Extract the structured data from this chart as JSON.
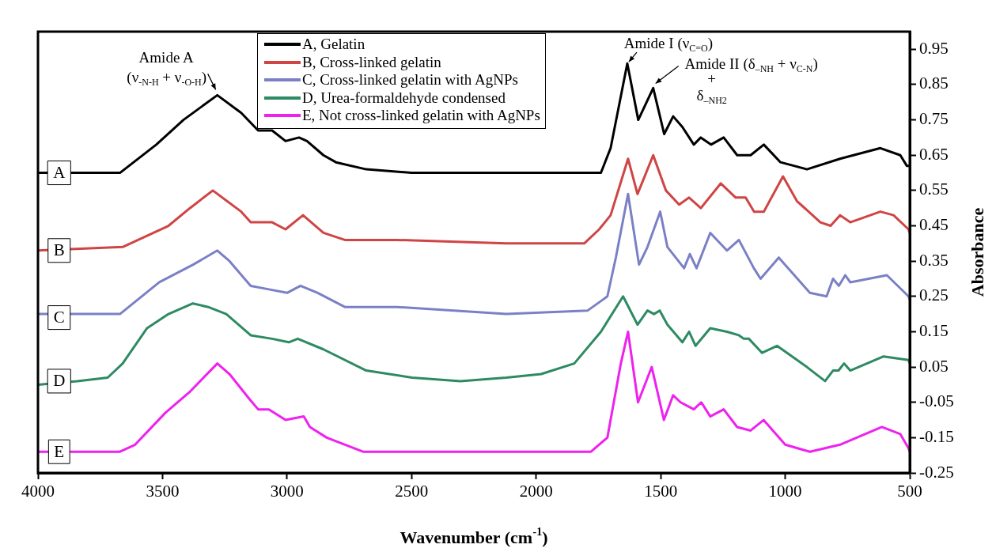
{
  "chart_data": {
    "type": "line",
    "xlabel": "Wavenumber (cm$^{-1}$)",
    "ylabel": "Absorbance",
    "xlim": [
      4000,
      500
    ],
    "xticks": [
      4000,
      3500,
      3000,
      2500,
      2000,
      1500,
      1000,
      500
    ],
    "ylim": [
      -0.25,
      1.0
    ],
    "yticks": [
      -0.25,
      -0.15,
      -0.05,
      0.05,
      0.15,
      0.25,
      0.35,
      0.45,
      0.55,
      0.65,
      0.75,
      0.85,
      0.95
    ],
    "grid": false,
    "legend": "top",
    "series": [
      {
        "name": "A, Gelatin",
        "color": "#000000",
        "x": [
          4000,
          3671,
          3525,
          3416,
          3280,
          3184,
          3116,
          3060,
          3006,
          2952,
          2920,
          2854,
          2804,
          2682,
          2500,
          2000,
          1740,
          1701,
          1634,
          1590,
          1530,
          1486,
          1450,
          1413,
          1367,
          1339,
          1298,
          1247,
          1193,
          1139,
          1086,
          1019,
          913,
          780,
          618,
          538,
          512,
          500
        ],
        "values": [
          0.6,
          0.6,
          0.68,
          0.75,
          0.82,
          0.77,
          0.72,
          0.72,
          0.69,
          0.7,
          0.69,
          0.65,
          0.63,
          0.61,
          0.6,
          0.6,
          0.6,
          0.67,
          0.91,
          0.75,
          0.84,
          0.71,
          0.76,
          0.73,
          0.68,
          0.7,
          0.68,
          0.7,
          0.65,
          0.65,
          0.68,
          0.63,
          0.61,
          0.64,
          0.67,
          0.65,
          0.62,
          0.62
        ]
      },
      {
        "name": "B, Cross-linked gelatin",
        "color": "#d04444",
        "x": [
          4000,
          3660,
          3476,
          3390,
          3298,
          3184,
          3146,
          3060,
          3006,
          2936,
          2854,
          2768,
          2560,
          2120,
          1807,
          1747,
          1701,
          1631,
          1593,
          1530,
          1479,
          1426,
          1386,
          1339,
          1259,
          1199,
          1159,
          1125,
          1086,
          1009,
          953,
          859,
          818,
          780,
          739,
          618,
          565,
          505,
          500
        ],
        "values": [
          0.38,
          0.39,
          0.45,
          0.5,
          0.55,
          0.49,
          0.46,
          0.46,
          0.44,
          0.48,
          0.43,
          0.41,
          0.41,
          0.4,
          0.4,
          0.44,
          0.48,
          0.64,
          0.54,
          0.65,
          0.55,
          0.51,
          0.53,
          0.5,
          0.57,
          0.53,
          0.53,
          0.49,
          0.49,
          0.59,
          0.52,
          0.46,
          0.45,
          0.48,
          0.46,
          0.49,
          0.48,
          0.44,
          0.43
        ]
      },
      {
        "name": "C, Cross-linked gelatin with AgNPs",
        "color": "#7b80c6",
        "x": [
          4000,
          3671,
          3513,
          3377,
          3280,
          3231,
          3146,
          3073,
          3000,
          2946,
          2877,
          2768,
          2560,
          2120,
          1793,
          1714,
          1680,
          1631,
          1587,
          1553,
          1502,
          1473,
          1406,
          1383,
          1356,
          1301,
          1234,
          1186,
          1126,
          1099,
          1026,
          901,
          834,
          808,
          785,
          759,
          739,
          592,
          505,
          500
        ],
        "values": [
          0.2,
          0.2,
          0.29,
          0.34,
          0.38,
          0.35,
          0.28,
          0.27,
          0.26,
          0.28,
          0.26,
          0.22,
          0.22,
          0.2,
          0.21,
          0.25,
          0.36,
          0.54,
          0.34,
          0.39,
          0.49,
          0.39,
          0.33,
          0.37,
          0.33,
          0.43,
          0.38,
          0.41,
          0.33,
          0.3,
          0.36,
          0.26,
          0.25,
          0.3,
          0.28,
          0.31,
          0.29,
          0.31,
          0.25,
          0.24
        ]
      },
      {
        "name": "D, Urea-formaldehyde condensed",
        "color": "#2e8a62",
        "x": [
          4000,
          3842,
          3720,
          3660,
          3562,
          3476,
          3378,
          3317,
          3244,
          3146,
          3060,
          2993,
          2957,
          2854,
          2682,
          2498,
          2304,
          2120,
          1980,
          1847,
          1740,
          1651,
          1593,
          1553,
          1527,
          1504,
          1473,
          1413,
          1386,
          1360,
          1301,
          1234,
          1186,
          1166,
          1146,
          1093,
          1033,
          913,
          840,
          808,
          786,
          764,
          739,
          605,
          505,
          500
        ],
        "values": [
          0.0,
          0.01,
          0.02,
          0.06,
          0.16,
          0.2,
          0.23,
          0.22,
          0.2,
          0.14,
          0.13,
          0.12,
          0.13,
          0.1,
          0.04,
          0.02,
          0.01,
          0.02,
          0.03,
          0.06,
          0.15,
          0.25,
          0.17,
          0.21,
          0.2,
          0.21,
          0.17,
          0.12,
          0.15,
          0.11,
          0.16,
          0.15,
          0.14,
          0.13,
          0.13,
          0.09,
          0.11,
          0.05,
          0.01,
          0.04,
          0.04,
          0.06,
          0.04,
          0.08,
          0.07,
          0.06
        ]
      },
      {
        "name": "E, Not cross-linked gelatin with AgNPs",
        "color": "#ee22ee",
        "x": [
          4000,
          3671,
          3610,
          3489,
          3390,
          3280,
          3231,
          3152,
          3116,
          3073,
          3006,
          2933,
          2908,
          2841,
          2695,
          2120,
          1780,
          1714,
          1660,
          1631,
          1591,
          1536,
          1487,
          1450,
          1420,
          1367,
          1337,
          1301,
          1247,
          1193,
          1139,
          1087,
          1000,
          901,
          780,
          612,
          538,
          505,
          500
        ],
        "values": [
          -0.19,
          -0.19,
          -0.17,
          -0.08,
          -0.02,
          0.06,
          0.03,
          -0.04,
          -0.07,
          -0.07,
          -0.1,
          -0.09,
          -0.12,
          -0.15,
          -0.19,
          -0.19,
          -0.19,
          -0.15,
          0.06,
          0.15,
          -0.05,
          0.05,
          -0.1,
          -0.03,
          -0.05,
          -0.07,
          -0.05,
          -0.09,
          -0.07,
          -0.12,
          -0.13,
          -0.1,
          -0.17,
          -0.19,
          -0.17,
          -0.12,
          -0.14,
          -0.18,
          -0.19
        ]
      }
    ],
    "annotations": [
      {
        "text": "A",
        "x": 3915,
        "y": 0.6
      },
      {
        "text": "B",
        "x": 3915,
        "y": 0.38
      },
      {
        "text": "C",
        "x": 3915,
        "y": 0.19
      },
      {
        "text": "D",
        "x": 3915,
        "y": 0.01
      },
      {
        "text": "E",
        "x": 3915,
        "y": -0.19
      },
      {
        "text": "Amide A\n(ν$_{-N-H}$ + ν$_{-O-H}$)",
        "x": 3280,
        "y": 0.82
      },
      {
        "text": "Amide I (ν$_{C=O}$)",
        "x": 1634,
        "y": 0.91
      },
      {
        "text": "Amide II (δ$_{–NH}$ + ν$_{C-N}$)",
        "x": 1530,
        "y": 0.84
      },
      "+",
      "δ$_{–NH2}$"
    ]
  }
}
